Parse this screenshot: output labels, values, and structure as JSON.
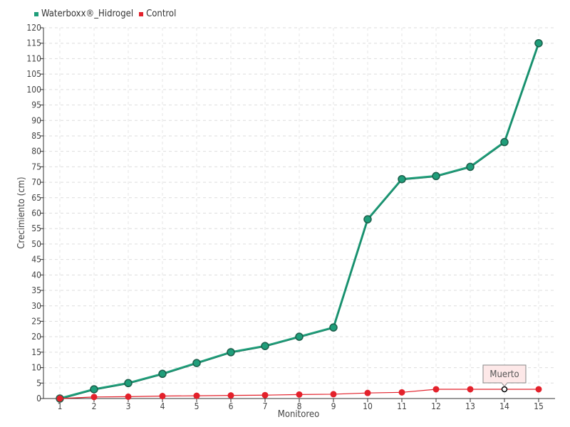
{
  "chart_data": {
    "type": "line",
    "xlabel": "Monitoreo",
    "ylabel": "Crecimiento (cm)",
    "categories": [
      "1",
      "2",
      "3",
      "4",
      "5",
      "6",
      "7",
      "8",
      "9",
      "10",
      "11",
      "12",
      "13",
      "14",
      "15"
    ],
    "ylim": [
      0,
      120
    ],
    "ytick_step": 5,
    "grid": true,
    "legend_position": "top-left",
    "series": [
      {
        "name": "Waterboxx®_Hidrogel",
        "color": "#1f9e7a",
        "values": [
          0,
          3,
          5,
          8,
          11.5,
          15,
          17,
          20,
          23,
          58,
          71,
          72,
          75,
          83,
          115
        ]
      },
      {
        "name": "Control",
        "color": "#e3212b",
        "values": [
          0,
          0.5,
          0.6,
          0.8,
          0.9,
          1,
          1.1,
          1.3,
          1.4,
          1.8,
          2,
          3,
          3,
          3,
          3
        ]
      }
    ],
    "annotations": [
      {
        "series": 1,
        "index": 13,
        "text": "Muerto"
      }
    ]
  }
}
